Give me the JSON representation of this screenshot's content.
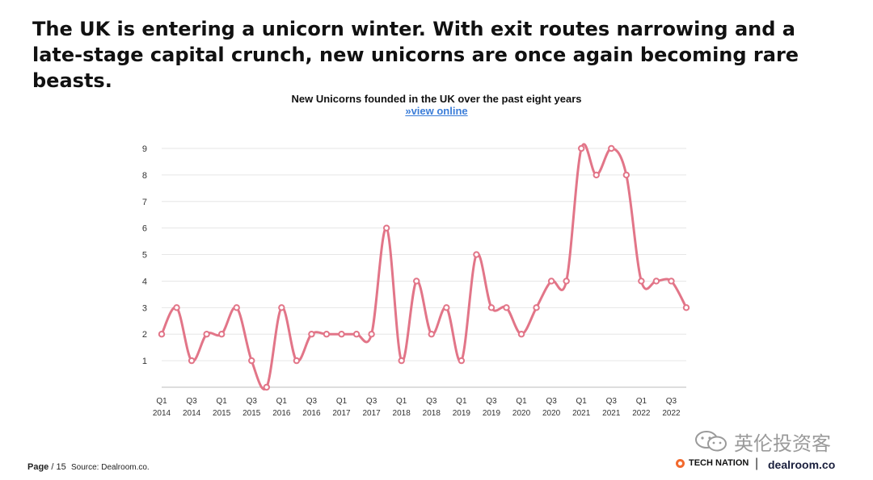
{
  "headline": "The UK is entering a unicorn winter. With exit routes narrowing and a late-stage capital crunch, new unicorns are once again becoming rare beasts.",
  "chart_link": "»view online",
  "footer": {
    "page_label": "Page",
    "page_number": "/ 15",
    "source": "Source: Dealroom.co."
  },
  "watermark": {
    "text": "英伦投资客",
    "icon": "wechat-icon"
  },
  "brands": {
    "tech_nation": "TECH NATION",
    "separator": "|",
    "dealroom": "dealroom.co"
  },
  "colors": {
    "line": "#e27588",
    "grid": "#e6e6e6",
    "link": "#3b7dd8",
    "tech_nation_dot": "#f26a2e"
  },
  "chart_data": {
    "type": "line",
    "title": "New Unicorns founded in the UK over the past eight years",
    "xlabel": "",
    "ylabel": "",
    "ylim": [
      0,
      9
    ],
    "yticks": [
      "1",
      "2",
      "3",
      "4",
      "5",
      "6",
      "7",
      "8",
      "9"
    ],
    "grid": true,
    "legend": "none",
    "x": [
      "Q1 2014",
      "Q2 2014",
      "Q3 2014",
      "Q4 2014",
      "Q1 2015",
      "Q2 2015",
      "Q3 2015",
      "Q4 2015",
      "Q1 2016",
      "Q2 2016",
      "Q3 2016",
      "Q4 2016",
      "Q1 2017",
      "Q2 2017",
      "Q3 2017",
      "Q4 2017",
      "Q1 2018",
      "Q2 2018",
      "Q3 2018",
      "Q4 2018",
      "Q1 2019",
      "Q2 2019",
      "Q3 2019",
      "Q4 2019",
      "Q1 2020",
      "Q2 2020",
      "Q3 2020",
      "Q4 2020",
      "Q1 2021",
      "Q2 2021",
      "Q3 2021",
      "Q4 2021",
      "Q1 2022",
      "Q2 2022",
      "Q3 2022",
      "Q4 2022"
    ],
    "x_tick_labels": [
      {
        "q": "Q1",
        "y": "2014"
      },
      {
        "q": "Q3",
        "y": "2014"
      },
      {
        "q": "Q1",
        "y": "2015"
      },
      {
        "q": "Q3",
        "y": "2015"
      },
      {
        "q": "Q1",
        "y": "2016"
      },
      {
        "q": "Q3",
        "y": "2016"
      },
      {
        "q": "Q1",
        "y": "2017"
      },
      {
        "q": "Q3",
        "y": "2017"
      },
      {
        "q": "Q1",
        "y": "2018"
      },
      {
        "q": "Q3",
        "y": "2018"
      },
      {
        "q": "Q1",
        "y": "2019"
      },
      {
        "q": "Q3",
        "y": "2019"
      },
      {
        "q": "Q1",
        "y": "2020"
      },
      {
        "q": "Q3",
        "y": "2020"
      },
      {
        "q": "Q1",
        "y": "2021"
      },
      {
        "q": "Q3",
        "y": "2021"
      },
      {
        "q": "Q1",
        "y": "2022"
      },
      {
        "q": "Q3",
        "y": "2022"
      }
    ],
    "series": [
      {
        "values": [
          2,
          3,
          1,
          2,
          2,
          3,
          1,
          0,
          3,
          1,
          2,
          2,
          2,
          2,
          2,
          6,
          1,
          4,
          2,
          3,
          1,
          5,
          3,
          3,
          2,
          3,
          4,
          4,
          9,
          8,
          9,
          8,
          4,
          4,
          4,
          3
        ]
      }
    ]
  }
}
